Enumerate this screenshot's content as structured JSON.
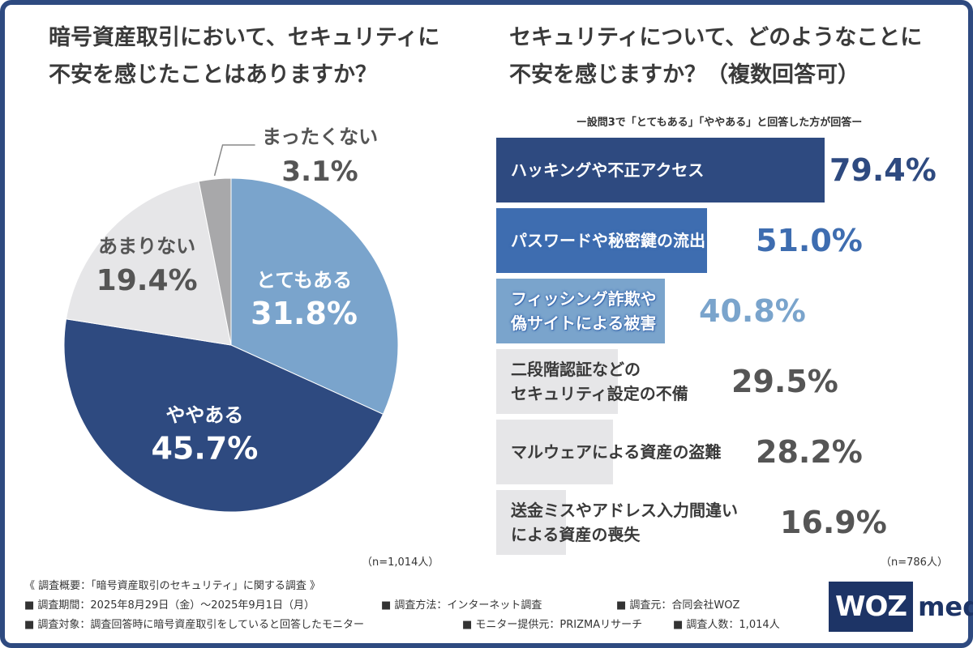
{
  "chart_data": [
    {
      "type": "pie",
      "title": [
        "暗号資産取引において、セキュリティに",
        "不安を感じたことはありますか？"
      ],
      "slices": [
        {
          "label": "とてもある",
          "value": 31.8,
          "value_label": "31.8%",
          "color": "#7aa4cc",
          "text_color": "#ffffff"
        },
        {
          "label": "ややある",
          "value": 45.7,
          "value_label": "45.7%",
          "color": "#2e4a80",
          "text_color": "#ffffff"
        },
        {
          "label": "あまりない",
          "value": 19.4,
          "value_label": "19.4%",
          "color": "#e6e6e8",
          "text_color": "#555555"
        },
        {
          "label": "まったくない",
          "value": 3.1,
          "value_label": "3.1%",
          "color": "#a8a8aa",
          "text_color": "#555555"
        }
      ],
      "start": "12 o'clock, clockwise",
      "sample": "（n=1,014人）"
    },
    {
      "type": "bar",
      "orientation": "horizontal",
      "title": [
        "セキュリティについて、どのようなことに",
        "不安を感じますか？（複数回答可）"
      ],
      "subtitle": "ー設問3で「とてもある」「ややある」と回答した方が回答ー",
      "categories": [
        [
          "ハッキングや不正アクセス"
        ],
        [
          "パスワードや秘密鍵の流出"
        ],
        [
          "フィッシング詐欺や",
          "偽サイトによる被害"
        ],
        [
          "二段階認証などの",
          "セキュリティ設定の不備"
        ],
        [
          "マルウェアによる資産の盗難"
        ],
        [
          "送金ミスやアドレス入力間違い",
          "による資産の喪失"
        ]
      ],
      "values": [
        79.4,
        51.0,
        40.8,
        29.5,
        28.2,
        16.9
      ],
      "value_labels": [
        "79.4%",
        "51.0%",
        "40.8%",
        "29.5%",
        "28.2%",
        "16.9%"
      ],
      "bar_colors": [
        "#2e4a80",
        "#3e6db0",
        "#7aa4cc",
        "#e6e6e8",
        "#e6e6e8",
        "#e6e6e8"
      ],
      "label_colors": [
        "#ffffff",
        "#ffffff",
        "#ffffff",
        "#3a3a3a",
        "#3a3a3a",
        "#3a3a3a"
      ],
      "value_colors": [
        "#2e4a80",
        "#3e6db0",
        "#7aa4cc",
        "#555555",
        "#555555",
        "#555555"
      ],
      "xlim": [
        0,
        100
      ],
      "sample": "（n=786人）"
    }
  ],
  "survey": {
    "heading": "《 調査概要：「暗号資産取引のセキュリティ」に関する調査 》",
    "rows": [
      [
        "■ 調査期間：2025年8月29日（金）〜2025年9月1日（月）",
        "■ 調査方法：インターネット調査",
        "■ 調査元：合同会社WOZ"
      ],
      [
        "■ 調査対象：調査回答時に暗号資産取引をしていると回答したモニター",
        "■ モニター提供元：PRIZMAリサーチ",
        "■ 調査人数：1,014人"
      ]
    ]
  },
  "logo": {
    "box": "WOZ",
    "text": "media",
    "color": "#1d3466"
  }
}
